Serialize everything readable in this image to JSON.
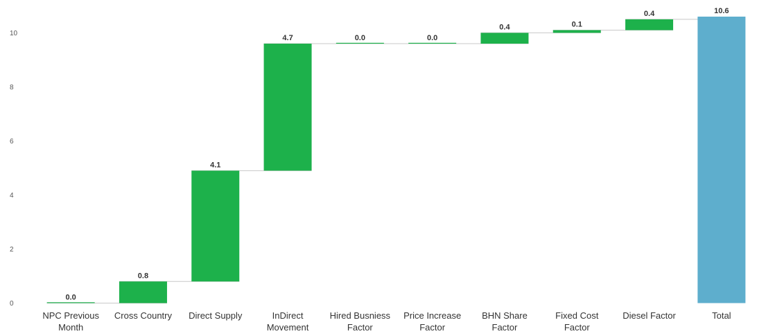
{
  "chart_data": {
    "type": "bar",
    "subtype": "waterfall",
    "title": "",
    "xlabel": "",
    "ylabel": "",
    "ylim": [
      0,
      10.6
    ],
    "yticks": [
      0,
      2,
      4,
      6,
      8,
      10
    ],
    "grid": false,
    "legend": "none",
    "colors": {
      "increase": "#1db14b",
      "total": "#5eaecd",
      "connector": "#c8c8c8"
    },
    "categories": [
      [
        "NPC Previous",
        "Month"
      ],
      [
        "Cross Country"
      ],
      [
        "Direct Supply"
      ],
      [
        "InDirect",
        "Movement"
      ],
      [
        "Hired Busniess",
        "Factor"
      ],
      [
        "Price Increase",
        "Factor"
      ],
      [
        "BHN Share",
        "Factor"
      ],
      [
        "Fixed Cost",
        "Factor"
      ],
      [
        "Diesel Factor"
      ],
      [
        "Total"
      ]
    ],
    "values": [
      0.0,
      0.8,
      4.1,
      4.7,
      0.0,
      0.0,
      0.4,
      0.1,
      0.4,
      10.6
    ],
    "labels": [
      "0.0",
      "0.8",
      "4.1",
      "4.7",
      "0.0",
      "0.0",
      "0.4",
      "0.1",
      "0.4",
      "10.6"
    ],
    "total_index": 9
  }
}
